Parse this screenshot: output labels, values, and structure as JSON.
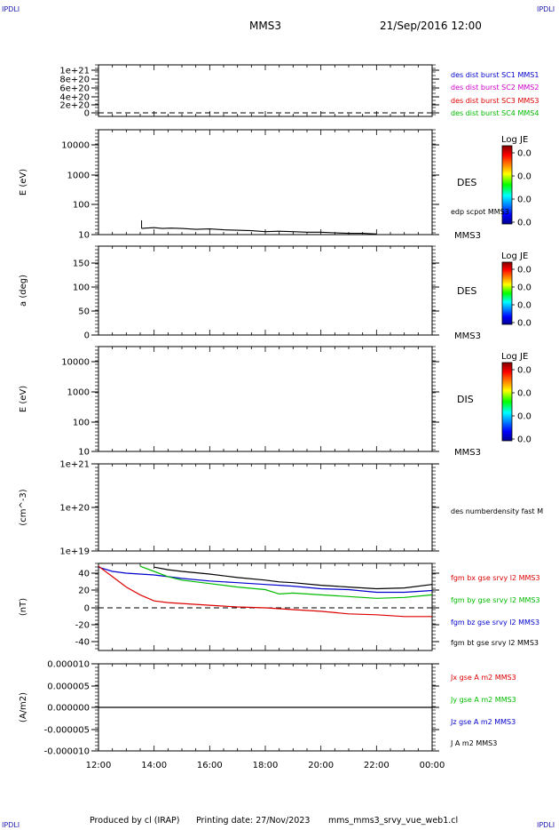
{
  "header": {
    "logo_left": "IPDLI",
    "logo_right": "IPDLI",
    "spacecraft": "MMS3",
    "datetime": "21/Sep/2016 12:00"
  },
  "footer": {
    "produced": "Produced by cl (IRAP)",
    "printing": "Printing date: 27/Nov/2023",
    "file": "mms_mms3_srvy_vue_web1.cl",
    "logo_left": "IPDLI",
    "logo_right": "IPDLI"
  },
  "colors": {
    "mms1": "#0000cc",
    "mms2": "#cc00cc",
    "mms3": "#dd0000",
    "mms4": "#00bb00",
    "black": "#000000"
  },
  "colorbar": {
    "title": "Log JE",
    "ticks": [
      "0.0",
      "0.0",
      "0.0",
      "0.0"
    ]
  },
  "chart_data": [
    {
      "type": "line",
      "panel": "des dist burst",
      "ylabel": "",
      "ylim": [
        0,
        1e+21
      ],
      "yticks": [
        "1e+21",
        "8e+20",
        "6e+20",
        "4e+20",
        "2e+20",
        "0"
      ],
      "dashed_zero": true,
      "legend": [
        {
          "text": "des dist burst SC1 MMS1",
          "color": "#0000cc"
        },
        {
          "text": "des dist burst SC2 MMS2",
          "color": "#cc00cc"
        },
        {
          "text": "des dist burst SC3 MMS3",
          "color": "#dd0000"
        },
        {
          "text": "des dist burst SC4 MMS4",
          "color": "#00bb00"
        }
      ]
    },
    {
      "type": "heatmap",
      "panel": "DES energy",
      "ylabel": "E (eV)",
      "yscale": "log",
      "ylim": [
        10,
        20000
      ],
      "yticks": [
        "10000",
        "1000",
        "100",
        "10"
      ],
      "side_label": "DES",
      "sc_label": "MMS3",
      "overlay_label": "edp scpot MMS3",
      "overlay": {
        "x": [
          13.55,
          13.7,
          14.0,
          14.3,
          14.6,
          15.0,
          15.5,
          16.0,
          16.5,
          17.0,
          17.5,
          18.0,
          18.5,
          19.0,
          19.5,
          20.0,
          20.5,
          21.0,
          21.5,
          22.0
        ],
        "y": [
          16,
          16.5,
          17,
          16,
          16.5,
          16,
          15,
          15.5,
          14.5,
          14,
          13.5,
          12.5,
          13,
          12.5,
          12,
          12,
          11.5,
          11,
          11,
          10.5
        ]
      }
    },
    {
      "type": "heatmap",
      "panel": "DES pitch angle",
      "ylabel": "a (deg)",
      "ylim": [
        0,
        180
      ],
      "yticks": [
        "150",
        "100",
        "50",
        "0"
      ],
      "side_label": "DES",
      "sc_label": "MMS3"
    },
    {
      "type": "heatmap",
      "panel": "DIS energy",
      "ylabel": "E (eV)",
      "yscale": "log",
      "ylim": [
        10,
        20000
      ],
      "yticks": [
        "10000",
        "1000",
        "100",
        "10"
      ],
      "side_label": "DIS",
      "sc_label": "MMS3"
    },
    {
      "type": "line",
      "panel": "density",
      "ylabel": "(cm^-3)",
      "yscale": "log",
      "ylim": [
        1e+19,
        1e+21
      ],
      "yticks": [
        "1e+21",
        "1e+20",
        "1e+19"
      ],
      "legend": [
        {
          "text": "des numberdensity fast M",
          "color": "#000000"
        }
      ]
    },
    {
      "type": "line",
      "panel": "fgm",
      "ylabel": "(nT)",
      "ylim": [
        -50,
        50
      ],
      "yticks": [
        "40",
        "20",
        "0",
        "-20",
        "-40"
      ],
      "dashed_zero": true,
      "x": [
        12.0,
        12.5,
        13.0,
        13.5,
        14.0,
        14.5,
        15.0,
        16.0,
        17.0,
        18.0,
        18.5,
        19.0,
        20.0,
        21.0,
        22.0,
        23.0,
        24.0
      ],
      "series": [
        {
          "name": "fgm bt gse srvy l2 MMS3",
          "color": "#000000",
          "values": [
            null,
            null,
            null,
            null,
            47,
            44,
            42,
            39,
            35,
            32,
            30,
            29,
            26,
            24,
            22,
            23,
            27
          ]
        },
        {
          "name": "fgm bz gse srvy l2 MMS3",
          "color": "#0000cc",
          "values": [
            47,
            42,
            40,
            39,
            38,
            36,
            34,
            31,
            29,
            27,
            26,
            25,
            22,
            21,
            18,
            18,
            20
          ]
        },
        {
          "name": "fgm by gse srvy l2 MMS3",
          "color": "#00bb00",
          "values": [
            null,
            null,
            null,
            48,
            42,
            36,
            32,
            28,
            24,
            21,
            16,
            17,
            15,
            13,
            11,
            12,
            15
          ]
        },
        {
          "name": "fgm bx gse srvy l2 MMS3",
          "color": "#dd0000",
          "values": [
            48,
            36,
            24,
            15,
            8,
            6,
            5,
            3,
            1,
            0,
            -1,
            -2,
            -4,
            -7,
            -8,
            -10,
            -10
          ]
        }
      ],
      "legend": [
        {
          "text": "fgm bx gse srvy l2 MMS3",
          "color": "#dd0000"
        },
        {
          "text": "fgm by gse srvy l2 MMS3",
          "color": "#00bb00"
        },
        {
          "text": "fgm bz gse srvy l2 MMS3",
          "color": "#0000cc"
        },
        {
          "text": "fgm bt gse srvy l2 MMS3",
          "color": "#000000"
        }
      ]
    },
    {
      "type": "line",
      "panel": "current",
      "ylabel": "(A/m2)",
      "ylim": [
        -1e-05,
        1e-05
      ],
      "yticks": [
        "0.000010",
        "0.000005",
        "0.000000",
        "-0.000005",
        "-0.000010"
      ],
      "x": [
        12.0,
        24.0
      ],
      "series": [
        {
          "name": "J A m2 MMS3",
          "color": "#000000",
          "values": [
            0,
            0
          ]
        }
      ],
      "legend": [
        {
          "text": "Jx gse A m2 MMS3",
          "color": "#dd0000"
        },
        {
          "text": "Jy gse A m2 MMS3",
          "color": "#00bb00"
        },
        {
          "text": "Jz gse A m2 MMS3",
          "color": "#0000cc"
        },
        {
          "text": "J A m2 MMS3",
          "color": "#000000"
        }
      ],
      "xlim": [
        12,
        24
      ],
      "xticks": [
        "12:00",
        "14:00",
        "16:00",
        "18:00",
        "20:00",
        "22:00",
        "00:00"
      ]
    }
  ]
}
